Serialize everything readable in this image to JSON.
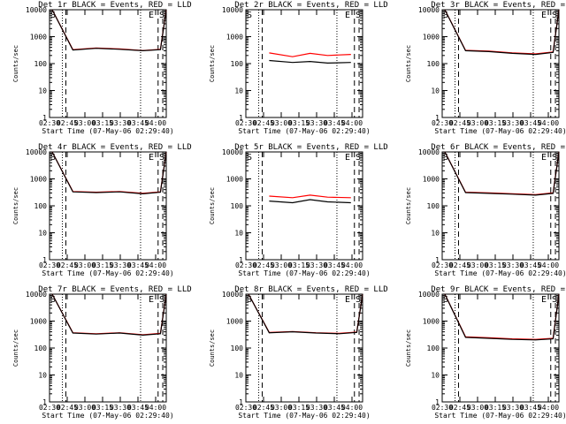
{
  "colors": {
    "events": "#000000",
    "lld": "#ff0000",
    "background": "#ffffff",
    "axes": "#000000"
  },
  "chart_data": [
    {
      "type": "line",
      "title": "Det 1r BLACK = Events, RED = LLD",
      "xlabel": "Start Time (07-May-06 02:29:40)",
      "ylabel": "Counts/sec",
      "xtick_labels": [
        "02:30",
        "02:45",
        "03:00",
        "03:15",
        "03:30",
        "03:45",
        "04:00"
      ],
      "ytick_labels": [
        "1",
        "10",
        "100",
        "1000",
        "10000"
      ],
      "x_minutes": [
        2.3,
        20,
        40,
        60,
        80,
        95,
        100
      ],
      "yscale": "log",
      "ylim": [
        1,
        10000
      ],
      "xlim": [
        0,
        100
      ],
      "markers": {
        "start": "S",
        "end": "E",
        "saa": "S"
      },
      "series": [
        {
          "name": "Events",
          "values": [
            10000,
            320,
            370,
            340,
            300,
            330,
            10000
          ]
        },
        {
          "name": "LLD",
          "values": [
            10000,
            330,
            380,
            350,
            305,
            340,
            10000
          ]
        }
      ]
    },
    {
      "type": "line",
      "title": "Det 2r BLACK = Events, RED = LLD",
      "xlabel": "Start Time (07-May-06 02:29:40)",
      "ylabel": "Counts/sec",
      "xtick_labels": [
        "02:30",
        "02:45",
        "03:00",
        "03:15",
        "03:30",
        "03:45",
        "04:00"
      ],
      "ytick_labels": [
        "1",
        "10",
        "100",
        "1000",
        "10000"
      ],
      "x_minutes": [
        20,
        40,
        55,
        70,
        90
      ],
      "yscale": "log",
      "ylim": [
        1,
        10000
      ],
      "xlim": [
        0,
        100
      ],
      "markers": {
        "start": "S",
        "end": "E",
        "saa": "S"
      },
      "series": [
        {
          "name": "Events",
          "values": [
            130,
            110,
            120,
            105,
            110
          ]
        },
        {
          "name": "LLD",
          "values": [
            250,
            180,
            240,
            200,
            220
          ]
        }
      ]
    },
    {
      "type": "line",
      "title": "Det 3r BLACK = Events, RED = LLD",
      "xlabel": "Start Time (07-May-06 02:29:40)",
      "ylabel": "Counts/sec",
      "xtick_labels": [
        "02:30",
        "02:45",
        "03:00",
        "03:15",
        "03:30",
        "03:45",
        "04:00"
      ],
      "ytick_labels": [
        "1",
        "10",
        "100",
        "1000",
        "10000"
      ],
      "x_minutes": [
        2.3,
        20,
        40,
        60,
        80,
        95,
        100
      ],
      "yscale": "log",
      "ylim": [
        1,
        10000
      ],
      "xlim": [
        0,
        100
      ],
      "markers": {
        "start": "S",
        "end": "E",
        "saa": "S"
      },
      "series": [
        {
          "name": "Events",
          "values": [
            10000,
            300,
            280,
            240,
            220,
            260,
            10000
          ]
        },
        {
          "name": "LLD",
          "values": [
            10000,
            310,
            290,
            250,
            230,
            270,
            10000
          ]
        }
      ]
    },
    {
      "type": "line",
      "title": "Det 4r BLACK = Events, RED = LLD",
      "xlabel": "Start Time (07-May-06 02:29:40)",
      "ylabel": "Counts/sec",
      "xtick_labels": [
        "02:30",
        "02:45",
        "03:00",
        "03:15",
        "03:30",
        "03:45",
        "04:00"
      ],
      "ytick_labels": [
        "1",
        "10",
        "100",
        "1000",
        "10000"
      ],
      "x_minutes": [
        2.3,
        20,
        40,
        60,
        80,
        95,
        100
      ],
      "yscale": "log",
      "ylim": [
        1,
        10000
      ],
      "xlim": [
        0,
        100
      ],
      "markers": {
        "start": "S",
        "end": "E",
        "saa": "S"
      },
      "series": [
        {
          "name": "Events",
          "values": [
            10000,
            330,
            310,
            330,
            280,
            320,
            10000
          ]
        },
        {
          "name": "LLD",
          "values": [
            10000,
            340,
            320,
            340,
            290,
            330,
            10000
          ]
        }
      ]
    },
    {
      "type": "line",
      "title": "Det 5r BLACK = Events, RED = LLD",
      "xlabel": "Start Time (07-May-06 02:29:40)",
      "ylabel": "Counts/sec",
      "xtick_labels": [
        "02:30",
        "02:45",
        "03:00",
        "03:15",
        "03:30",
        "03:45",
        "04:00"
      ],
      "ytick_labels": [
        "1",
        "10",
        "100",
        "1000",
        "10000"
      ],
      "x_minutes": [
        20,
        40,
        55,
        70,
        90
      ],
      "yscale": "log",
      "ylim": [
        1,
        10000
      ],
      "xlim": [
        0,
        100
      ],
      "markers": {
        "start": "S",
        "end": "E",
        "saa": "S"
      },
      "series": [
        {
          "name": "Events",
          "values": [
            150,
            130,
            170,
            140,
            130
          ]
        },
        {
          "name": "LLD",
          "values": [
            230,
            200,
            250,
            210,
            200
          ]
        }
      ]
    },
    {
      "type": "line",
      "title": "Det 6r BLACK = Events, RED = LLD",
      "xlabel": "Start Time (07-May-06 02:29:40)",
      "ylabel": "Counts/sec",
      "xtick_labels": [
        "02:30",
        "02:45",
        "03:00",
        "03:15",
        "03:30",
        "03:45",
        "04:00"
      ],
      "ytick_labels": [
        "1",
        "10",
        "100",
        "1000",
        "10000"
      ],
      "x_minutes": [
        2.3,
        20,
        40,
        60,
        80,
        95,
        100
      ],
      "yscale": "log",
      "ylim": [
        1,
        10000
      ],
      "xlim": [
        0,
        100
      ],
      "markers": {
        "start": "S",
        "end": "E",
        "saa": "S"
      },
      "series": [
        {
          "name": "Events",
          "values": [
            10000,
            310,
            290,
            270,
            250,
            290,
            10000
          ]
        },
        {
          "name": "LLD",
          "values": [
            10000,
            320,
            300,
            280,
            260,
            300,
            10000
          ]
        }
      ]
    },
    {
      "type": "line",
      "title": "Det 7r BLACK = Events, RED = LLD",
      "xlabel": "Start Time (07-May-06 02:29:40)",
      "ylabel": "Counts/sec",
      "xtick_labels": [
        "02:30",
        "02:45",
        "03:00",
        "03:15",
        "03:30",
        "03:45",
        "04:00"
      ],
      "ytick_labels": [
        "1",
        "10",
        "100",
        "1000",
        "10000"
      ],
      "x_minutes": [
        2.3,
        20,
        40,
        60,
        80,
        95,
        100
      ],
      "yscale": "log",
      "ylim": [
        1,
        10000
      ],
      "xlim": [
        0,
        100
      ],
      "markers": {
        "start": "S",
        "end": "E",
        "saa": "S"
      },
      "series": [
        {
          "name": "Events",
          "values": [
            10000,
            360,
            330,
            360,
            300,
            340,
            10000
          ]
        },
        {
          "name": "LLD",
          "values": [
            10000,
            370,
            340,
            370,
            310,
            350,
            10000
          ]
        }
      ]
    },
    {
      "type": "line",
      "title": "Det 8r BLACK = Events, RED = LLD",
      "xlabel": "Start Time (07-May-06 02:29:40)",
      "ylabel": "Counts/sec",
      "xtick_labels": [
        "02:30",
        "02:45",
        "03:00",
        "03:15",
        "03:30",
        "03:45",
        "04:00"
      ],
      "ytick_labels": [
        "1",
        "10",
        "100",
        "1000",
        "10000"
      ],
      "x_minutes": [
        2.3,
        20,
        40,
        60,
        80,
        95,
        100
      ],
      "yscale": "log",
      "ylim": [
        1,
        10000
      ],
      "xlim": [
        0,
        100
      ],
      "markers": {
        "start": "S",
        "end": "E",
        "saa": "S"
      },
      "series": [
        {
          "name": "Events",
          "values": [
            10000,
            370,
            400,
            360,
            340,
            380,
            10000
          ]
        },
        {
          "name": "LLD",
          "values": [
            10000,
            380,
            410,
            370,
            350,
            390,
            10000
          ]
        }
      ]
    },
    {
      "type": "line",
      "title": "Det 9r BLACK = Events, RED = LLD",
      "xlabel": "Start Time (07-May-06 02:29:40)",
      "ylabel": "Counts/sec",
      "xtick_labels": [
        "02:30",
        "02:45",
        "03:00",
        "03:15",
        "03:30",
        "03:45",
        "04:00"
      ],
      "ytick_labels": [
        "1",
        "10",
        "100",
        "1000",
        "10000"
      ],
      "x_minutes": [
        2.3,
        20,
        40,
        60,
        80,
        95,
        100
      ],
      "yscale": "log",
      "ylim": [
        1,
        10000
      ],
      "xlim": [
        0,
        100
      ],
      "markers": {
        "start": "S",
        "end": "E",
        "saa": "S"
      },
      "series": [
        {
          "name": "Events",
          "values": [
            10000,
            250,
            230,
            210,
            200,
            220,
            10000
          ]
        },
        {
          "name": "LLD",
          "values": [
            10000,
            260,
            240,
            220,
            210,
            230,
            10000
          ]
        }
      ]
    }
  ]
}
